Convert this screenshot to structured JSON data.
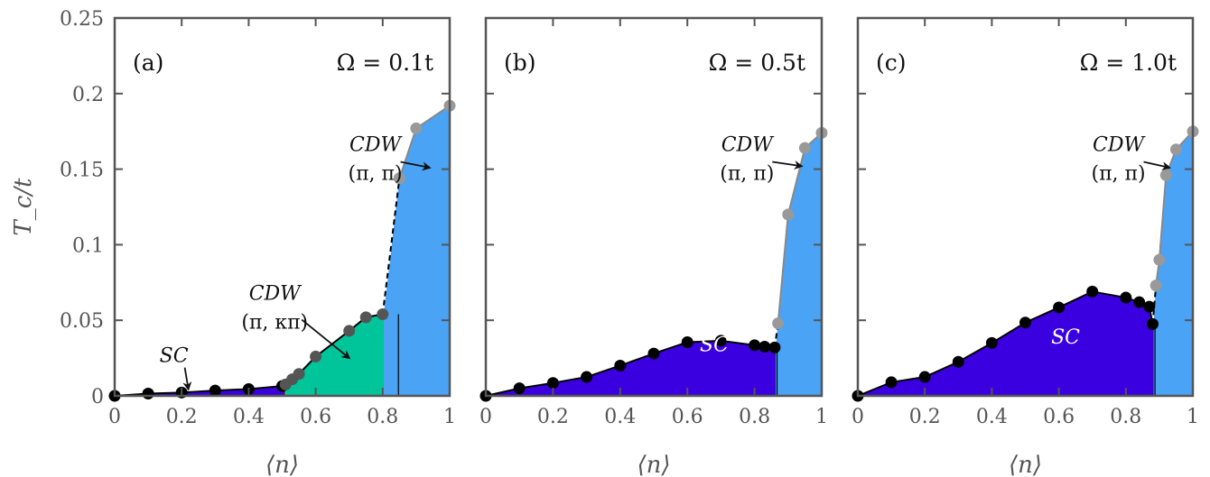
{
  "chart_data": [
    {
      "type": "area",
      "panel_label": "(a)",
      "omega_label": "Ω = 0.1t",
      "xlabel": "⟨n⟩",
      "ylabel": "T_c/t",
      "xlim": [
        0,
        1
      ],
      "ylim": [
        0,
        0.25
      ],
      "xticks": [
        "0",
        "0.2",
        "0.4",
        "0.6",
        "0.8",
        "1"
      ],
      "yticks": [
        "0",
        "0.05",
        "0.1",
        "0.15",
        "0.2",
        "0.25"
      ],
      "series": [
        {
          "name": "SC",
          "color": "#3b00e0",
          "x": [
            0.0,
            0.1,
            0.2,
            0.3,
            0.4,
            0.5
          ],
          "y": [
            0.0,
            0.0015,
            0.0022,
            0.0035,
            0.0045,
            0.0065
          ]
        },
        {
          "name": "CDW (π, κπ)",
          "color": "#00c49a",
          "x": [
            0.51,
            0.53,
            0.55,
            0.6,
            0.7,
            0.75,
            0.8
          ],
          "y": [
            0.0075,
            0.011,
            0.0145,
            0.026,
            0.043,
            0.052,
            0.054
          ]
        },
        {
          "name": "CDW (π, π)",
          "color": "#4aa3f5",
          "x": [
            0.85,
            0.9,
            1.0
          ],
          "y": [
            0.144,
            0.177,
            0.192
          ]
        }
      ],
      "annotations": [
        {
          "text": "SC",
          "target": [
            0.22,
            0.002
          ]
        },
        {
          "text": "CDW",
          "sub": "(π, κπ)",
          "target": [
            0.7,
            0.025
          ]
        },
        {
          "text": "CDW",
          "sub": "(π, π)",
          "target": [
            0.94,
            0.151
          ]
        }
      ]
    },
    {
      "type": "area",
      "panel_label": "(b)",
      "omega_label": "Ω = 0.5t",
      "xlabel": "⟨n⟩",
      "ylabel": "",
      "xlim": [
        0,
        1
      ],
      "ylim": [
        0,
        0.25
      ],
      "xticks": [
        "0",
        "0.2",
        "0.4",
        "0.6",
        "0.8",
        "1"
      ],
      "yticks": [],
      "series": [
        {
          "name": "SC",
          "color": "#3b00e0",
          "x": [
            0.0,
            0.1,
            0.2,
            0.3,
            0.4,
            0.5,
            0.6,
            0.7,
            0.8,
            0.83,
            0.86
          ],
          "y": [
            0.0,
            0.005,
            0.0085,
            0.0125,
            0.02,
            0.028,
            0.0355,
            0.0365,
            0.0335,
            0.0325,
            0.032
          ]
        },
        {
          "name": "CDW (π, π)",
          "color": "#4aa3f5",
          "x": [
            0.87,
            0.9,
            0.95,
            1.0
          ],
          "y": [
            0.048,
            0.12,
            0.164,
            0.174
          ]
        }
      ],
      "annotations": [
        {
          "text": "SC",
          "target": [
            0.68,
            0.02
          ]
        },
        {
          "text": "CDW",
          "sub": "(π, π)",
          "target": [
            0.94,
            0.152
          ]
        }
      ]
    },
    {
      "type": "area",
      "panel_label": "(c)",
      "omega_label": "Ω = 1.0t",
      "xlabel": "⟨n⟩",
      "ylabel": "",
      "xlim": [
        0,
        1
      ],
      "ylim": [
        0,
        0.25
      ],
      "xticks": [
        "0",
        "0.2",
        "0.4",
        "0.6",
        "0.8",
        "1"
      ],
      "yticks": [],
      "series": [
        {
          "name": "SC",
          "color": "#3b00e0",
          "x": [
            0.0,
            0.1,
            0.2,
            0.3,
            0.4,
            0.5,
            0.6,
            0.7,
            0.8,
            0.84,
            0.87,
            0.88
          ],
          "y": [
            0.0,
            0.009,
            0.0125,
            0.0225,
            0.035,
            0.0485,
            0.0585,
            0.069,
            0.065,
            0.062,
            0.059,
            0.0475
          ]
        },
        {
          "name": "CDW (π, π)",
          "color": "#4aa3f5",
          "x": [
            0.89,
            0.9,
            0.92,
            0.95,
            1.0
          ],
          "y": [
            0.073,
            0.09,
            0.146,
            0.163,
            0.175
          ]
        }
      ],
      "annotations": [
        {
          "text": "SC",
          "target": [
            0.62,
            0.025
          ]
        },
        {
          "text": "CDW",
          "sub": "(π, π)",
          "target": [
            0.93,
            0.151
          ]
        }
      ]
    }
  ]
}
